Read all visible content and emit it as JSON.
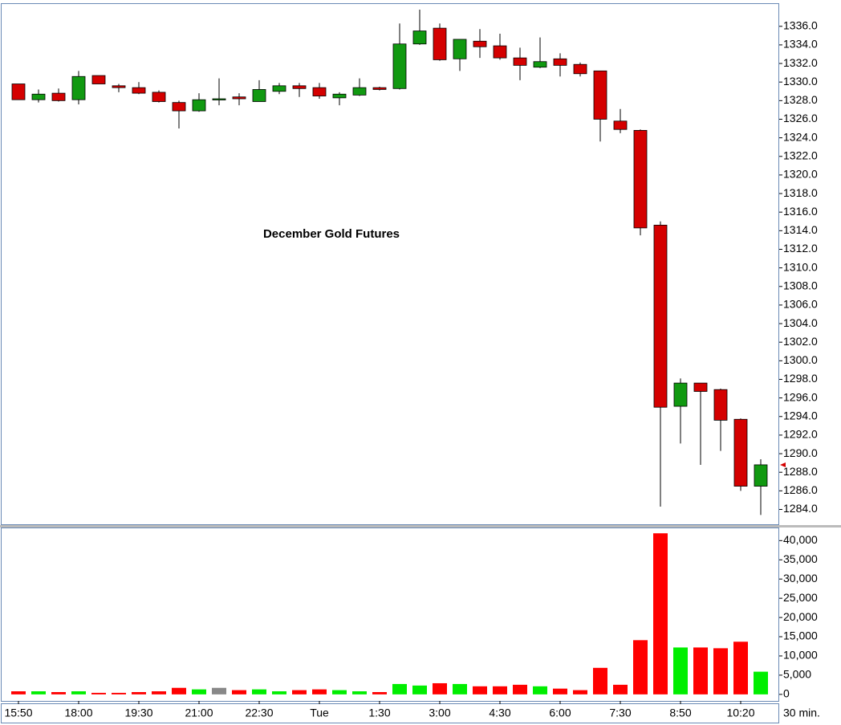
{
  "chart_data": [
    {
      "type": "candlestick",
      "annotation": "December Gold Futures",
      "interval": "30 min.",
      "categories": [
        "15:50",
        null,
        null,
        "18:00",
        null,
        null,
        "19:30",
        null,
        null,
        "21:00",
        null,
        null,
        "22:30",
        null,
        null,
        "Tue",
        null,
        null,
        "1:30",
        null,
        null,
        "3:00",
        null,
        null,
        "4:30",
        null,
        null,
        "6:00",
        null,
        null,
        "7:30",
        null,
        null,
        "8:50",
        null,
        null,
        "10:20",
        null
      ],
      "open": [
        1329.8,
        1328.1,
        1328.8,
        1328.1,
        1330.7,
        1329.6,
        1329.4,
        1328.9,
        1327.8,
        1326.9,
        1328.2,
        1328.4,
        1327.9,
        1329.0,
        1329.6,
        1329.4,
        1328.3,
        1328.6,
        1329.4,
        1329.3,
        1334.1,
        1335.8,
        1332.5,
        1334.4,
        1333.9,
        1332.6,
        1331.6,
        1332.5,
        1331.9,
        1331.2,
        1325.8,
        1324.8,
        1314.6,
        1295.1,
        1297.6,
        1296.9,
        1293.7,
        1286.5
      ],
      "high": [
        1329.8,
        1329.2,
        1329.3,
        1331.2,
        1330.7,
        1329.8,
        1330.0,
        1329.1,
        1328.0,
        1328.8,
        1330.4,
        1328.8,
        1330.2,
        1329.9,
        1329.9,
        1329.9,
        1328.9,
        1330.4,
        1329.5,
        1336.3,
        1337.8,
        1336.3,
        1334.6,
        1335.7,
        1335.2,
        1333.7,
        1334.8,
        1333.1,
        1332.1,
        1331.2,
        1327.1,
        1324.9,
        1315.0,
        1298.1,
        1297.6,
        1297.0,
        1293.8,
        1289.4
      ],
      "low": [
        1328.1,
        1327.8,
        1327.9,
        1327.6,
        1329.8,
        1328.9,
        1328.7,
        1327.8,
        1325.0,
        1326.8,
        1327.5,
        1327.5,
        1327.9,
        1328.7,
        1328.4,
        1328.2,
        1327.5,
        1328.5,
        1329.1,
        1329.2,
        1334.0,
        1332.3,
        1331.2,
        1332.6,
        1332.4,
        1330.2,
        1331.5,
        1330.6,
        1330.6,
        1323.6,
        1324.5,
        1313.5,
        1284.3,
        1291.1,
        1288.8,
        1290.3,
        1286.0,
        1283.4
      ],
      "close": [
        1328.1,
        1328.7,
        1328.0,
        1330.6,
        1329.8,
        1329.4,
        1328.8,
        1327.9,
        1326.9,
        1328.1,
        1328.2,
        1328.2,
        1329.2,
        1329.6,
        1329.3,
        1328.5,
        1328.7,
        1329.4,
        1329.2,
        1334.1,
        1335.5,
        1332.4,
        1334.6,
        1333.8,
        1332.6,
        1331.8,
        1332.2,
        1331.8,
        1330.9,
        1326.0,
        1324.9,
        1314.3,
        1295.0,
        1297.6,
        1296.7,
        1293.6,
        1286.5,
        1288.8
      ],
      "up_color": "#119911",
      "down_color": "#d40000",
      "ylim": [
        1282.4,
        1338.4
      ],
      "yticks": [
        {
          "value": 1284,
          "label": "1284.0"
        },
        {
          "value": 1286,
          "label": "1286.0"
        },
        {
          "value": 1288,
          "label": "1288.0"
        },
        {
          "value": 1290,
          "label": "1290.0"
        },
        {
          "value": 1292,
          "label": "1292.0"
        },
        {
          "value": 1294,
          "label": "1294.0"
        },
        {
          "value": 1296,
          "label": "1296.0"
        },
        {
          "value": 1298,
          "label": "1298.0"
        },
        {
          "value": 1300,
          "label": "1300.0"
        },
        {
          "value": 1302,
          "label": "1302.0"
        },
        {
          "value": 1304,
          "label": "1304.0"
        },
        {
          "value": 1306,
          "label": "1306.0"
        },
        {
          "value": 1308,
          "label": "1308.0"
        },
        {
          "value": 1310,
          "label": "1310.0"
        },
        {
          "value": 1312,
          "label": "1312.0"
        },
        {
          "value": 1314,
          "label": "1314.0"
        },
        {
          "value": 1316,
          "label": "1316.0"
        },
        {
          "value": 1318,
          "label": "1318.0"
        },
        {
          "value": 1320,
          "label": "1320.0"
        },
        {
          "value": 1322,
          "label": "1322.0"
        },
        {
          "value": 1324,
          "label": "1324.0"
        },
        {
          "value": 1326,
          "label": "1326.0"
        },
        {
          "value": 1328,
          "label": "1328.0"
        },
        {
          "value": 1330,
          "label": "1330.0"
        },
        {
          "value": 1332,
          "label": "1332.0"
        },
        {
          "value": 1334,
          "label": "1334.0"
        },
        {
          "value": 1336,
          "label": "1336.0"
        }
      ]
    },
    {
      "type": "bar",
      "values": [
        800,
        800,
        600,
        800,
        400,
        400,
        600,
        800,
        1700,
        1300,
        1700,
        1100,
        1300,
        800,
        1100,
        1300,
        1100,
        800,
        600,
        2700,
        2300,
        2900,
        2700,
        2100,
        2100,
        2500,
        2100,
        1500,
        1100,
        6900,
        2500,
        14100,
        41900,
        12200,
        12200,
        12000,
        13700,
        5900
      ],
      "up_color": "#00ee00",
      "down_color": "#ff0000",
      "flat_color": "#888888",
      "ylim": [
        -1700,
        43200
      ],
      "yticks": [
        0,
        {
          "value": 5000,
          "label": "5,000"
        },
        {
          "value": 10000,
          "label": "10,000"
        },
        {
          "value": 15000,
          "label": "15,000"
        },
        {
          "value": 20000,
          "label": "20,000"
        },
        {
          "value": 25000,
          "label": "25,000"
        },
        {
          "value": 30000,
          "label": "30,000"
        },
        {
          "value": 35000,
          "label": "35,000"
        },
        {
          "value": 40000,
          "label": "40,000"
        }
      ]
    }
  ]
}
